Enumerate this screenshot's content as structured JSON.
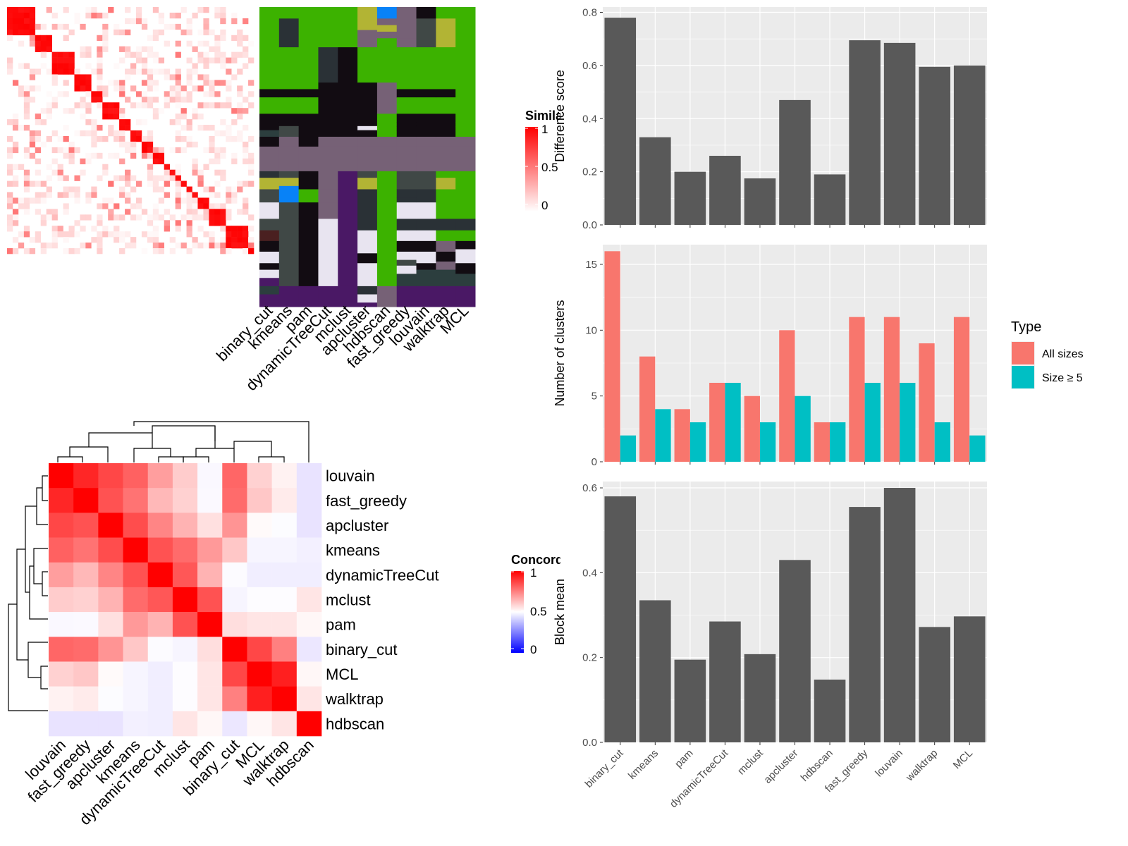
{
  "chart_data": [
    {
      "type": "heatmap",
      "panel": "similarity-matrix",
      "legend": {
        "title": "Similarity",
        "ticks": [
          "1",
          "0.5",
          "0"
        ],
        "colors": [
          "#FF0000",
          "#FFFFFF"
        ]
      },
      "block_sizes": [
        5,
        3,
        4,
        3,
        2,
        3,
        2,
        2,
        2,
        2,
        1,
        1,
        1,
        1,
        1,
        1,
        2,
        3,
        4,
        1
      ],
      "note_visible": "cell values not labeled; red diagonal blocks"
    },
    {
      "type": "heatmap",
      "panel": "cluster-assignments",
      "columns": [
        "binary_cut",
        "kmeans",
        "pam",
        "dynamicTreeCut",
        "mclust",
        "apcluster",
        "hdbscan",
        "fast_greedy",
        "louvain",
        "walktrap",
        "MCL"
      ],
      "palette": [
        "#3CB200",
        "#120C12",
        "#766176",
        "#2A3136",
        "#404846",
        "#B2B434",
        "#0882F7",
        "#E8E4F0",
        "#4A1865",
        "#4A2020",
        "#2C3E3E"
      ]
    },
    {
      "type": "bar",
      "categories": [
        "binary_cut",
        "kmeans",
        "pam",
        "dynamicTreeCut",
        "mclust",
        "apcluster",
        "hdbscan",
        "fast_greedy",
        "louvain",
        "walktrap",
        "MCL"
      ],
      "values": [
        0.78,
        0.33,
        0.2,
        0.26,
        0.175,
        0.47,
        0.19,
        0.695,
        0.685,
        0.595,
        0.6
      ],
      "ylabel": "Difference score",
      "ylim": [
        0,
        0.82
      ],
      "yticks": [
        "0.0",
        "0.2",
        "0.4",
        "0.6",
        "0.8"
      ],
      "ytick_values": [
        0,
        0.2,
        0.4,
        0.6,
        0.8
      ],
      "bar_color": "#595959",
      "panel_bg": "#EBEBEB"
    },
    {
      "type": "bar",
      "categories": [
        "binary_cut",
        "kmeans",
        "pam",
        "dynamicTreeCut",
        "mclust",
        "apcluster",
        "hdbscan",
        "fast_greedy",
        "louvain",
        "walktrap",
        "MCL"
      ],
      "series": [
        {
          "name": "All sizes",
          "values": [
            16,
            8,
            4,
            6,
            5,
            10,
            3,
            11,
            11,
            9,
            11
          ],
          "color": "#F8766D"
        },
        {
          "name": "Size ≥ 5",
          "values": [
            2,
            4,
            3,
            6,
            3,
            5,
            3,
            6,
            6,
            3,
            2
          ],
          "color": "#00BFC4"
        }
      ],
      "ylabel": "Number of clusters",
      "ylim": [
        0,
        16.5
      ],
      "yticks": [
        "0",
        "5",
        "10",
        "15"
      ],
      "ytick_values": [
        0,
        5,
        10,
        15
      ],
      "legend": {
        "title": "Type",
        "position": "right"
      },
      "panel_bg": "#EBEBEB"
    },
    {
      "type": "bar",
      "categories": [
        "binary_cut",
        "kmeans",
        "pam",
        "dynamicTreeCut",
        "mclust",
        "apcluster",
        "hdbscan",
        "fast_greedy",
        "louvain",
        "walktrap",
        "MCL"
      ],
      "values": [
        0.58,
        0.335,
        0.195,
        0.285,
        0.208,
        0.43,
        0.148,
        0.555,
        0.6,
        0.272,
        0.297
      ],
      "ylabel": "Block mean",
      "ylim": [
        0,
        0.615
      ],
      "yticks": [
        "0.0",
        "0.2",
        "0.4",
        "0.6"
      ],
      "ytick_values": [
        0,
        0.2,
        0.4,
        0.6
      ],
      "bar_color": "#595959",
      "panel_bg": "#EBEBEB"
    },
    {
      "type": "heatmap",
      "panel": "concordance",
      "labels": [
        "louvain",
        "fast_greedy",
        "apcluster",
        "kmeans",
        "dynamicTreeCut",
        "mclust",
        "pam",
        "binary_cut",
        "MCL",
        "walktrap",
        "hdbscan"
      ],
      "matrix": [
        [
          1,
          0.85,
          0.72,
          0.62,
          0.38,
          0.2,
          -0.1,
          0.6,
          0.18,
          0.05,
          -0.4
        ],
        [
          0.85,
          1,
          0.68,
          0.55,
          0.28,
          0.18,
          -0.08,
          0.58,
          0.22,
          0.08,
          -0.4
        ],
        [
          0.72,
          0.68,
          1,
          0.7,
          0.48,
          0.3,
          0.12,
          0.42,
          0.02,
          -0.05,
          -0.4
        ],
        [
          0.62,
          0.55,
          0.7,
          1,
          0.68,
          0.58,
          0.4,
          0.22,
          -0.15,
          -0.15,
          -0.22
        ],
        [
          0.38,
          0.28,
          0.48,
          0.68,
          1,
          0.66,
          0.3,
          -0.06,
          -0.25,
          -0.25,
          -0.25
        ],
        [
          0.2,
          0.18,
          0.3,
          0.58,
          0.66,
          1,
          0.68,
          -0.15,
          -0.04,
          -0.04,
          0.1
        ],
        [
          -0.1,
          -0.08,
          0.12,
          0.4,
          0.3,
          0.68,
          1,
          0.13,
          0.1,
          0.1,
          0.03
        ],
        [
          0.6,
          0.58,
          0.42,
          0.22,
          -0.06,
          -0.15,
          0.13,
          1,
          0.72,
          0.5,
          -0.35
        ],
        [
          0.18,
          0.22,
          0.02,
          -0.15,
          -0.25,
          -0.04,
          0.1,
          0.72,
          1,
          0.88,
          0.03
        ],
        [
          0.05,
          0.08,
          -0.05,
          -0.15,
          -0.25,
          -0.04,
          0.1,
          0.5,
          0.88,
          1,
          0.1
        ],
        [
          -0.4,
          -0.4,
          -0.4,
          -0.22,
          -0.25,
          0.1,
          0.03,
          -0.35,
          0.03,
          0.1,
          1
        ]
      ],
      "legend": {
        "title": "Concordance",
        "ticks": [
          "1",
          "0.5",
          "0"
        ]
      },
      "colors": {
        "high": "#FF0000",
        "mid": "#FFFFFF",
        "low": "#0000FF"
      }
    }
  ]
}
